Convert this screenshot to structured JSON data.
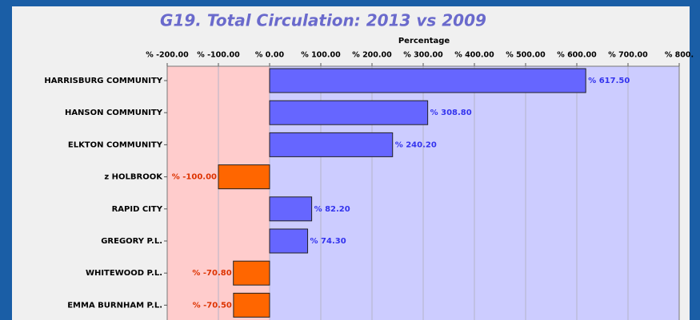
{
  "chart_data": {
    "type": "bar",
    "orientation": "horizontal",
    "title": "G19. Total Circulation: 2013 vs 2009",
    "x_label": "Percentage",
    "categories": [
      "HARRISBURG COMMUNITY",
      "HANSON COMMUNITY",
      "ELKTON COMMUNITY",
      "z HOLBROOK",
      "RAPID CITY",
      "GREGORY P.L.",
      "WHITEWOOD P.L.",
      "EMMA BURNHAM P.L."
    ],
    "values": [
      617.5,
      308.8,
      240.2,
      -100,
      82.2,
      74.3,
      -70.8,
      -70.5
    ],
    "value_labels": [
      "% 617.50",
      "% 308.80",
      "% 240.20",
      "% -100.00",
      "% 82.20",
      "% 74.30",
      "% -70.80",
      "% -70.50"
    ],
    "positive_color": "#6666ff",
    "negative_color": "#ff6600",
    "positive_label_color": "#3333ee",
    "negative_label_color": "#dd3300",
    "positive_background": "#ccccff",
    "negative_background": "#ffcccc",
    "xlim": [
      -200,
      800
    ],
    "xticks": [
      {
        "value": -200,
        "label": "% -200.00"
      },
      {
        "value": -100,
        "label": "% -100.00"
      },
      {
        "value": 0,
        "label": "% 0.00"
      },
      {
        "value": 100,
        "label": "% 100.00"
      },
      {
        "value": 200,
        "label": "% 200.00"
      },
      {
        "value": 300,
        "label": "% 300.00"
      },
      {
        "value": 400,
        "label": "% 400.00"
      },
      {
        "value": 500,
        "label": "% 500.00"
      },
      {
        "value": 600,
        "label": "% 600.00"
      },
      {
        "value": 700,
        "label": "% 700.00"
      },
      {
        "value": 800,
        "label": "% 800."
      }
    ],
    "grid": true
  }
}
